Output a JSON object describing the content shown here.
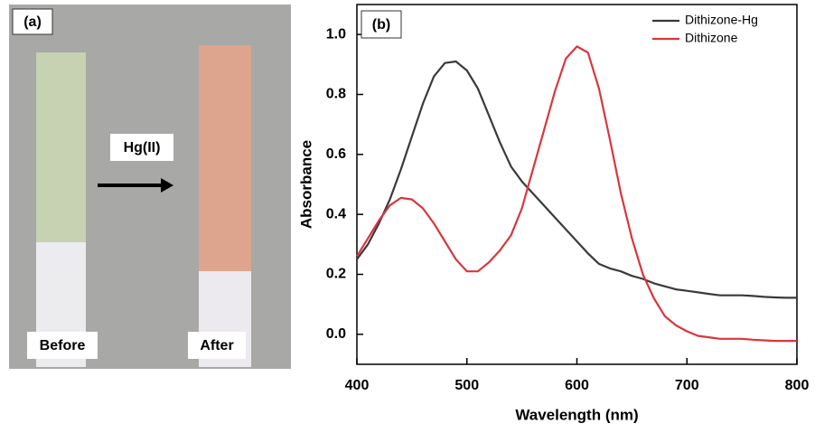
{
  "panel_a": {
    "label": "(a)",
    "arrow_label": "Hg(II)",
    "before": "Before",
    "after": "After"
  },
  "chart_data": {
    "type": "line",
    "title": "(b)",
    "x_label": "Wavelength (nm)",
    "y_label": "Absorbance",
    "x": [
      400,
      410,
      420,
      430,
      440,
      450,
      460,
      470,
      480,
      490,
      500,
      510,
      520,
      530,
      540,
      550,
      560,
      570,
      580,
      590,
      600,
      610,
      620,
      630,
      640,
      650,
      660,
      670,
      680,
      690,
      700,
      710,
      720,
      730,
      740,
      750,
      760,
      770,
      780,
      790,
      800
    ],
    "series": [
      {
        "name": "Dithizone-Hg",
        "color": "#3a3a3a",
        "values": [
          0.25,
          0.3,
          0.37,
          0.45,
          0.55,
          0.66,
          0.77,
          0.86,
          0.905,
          0.91,
          0.88,
          0.82,
          0.73,
          0.64,
          0.56,
          0.51,
          0.47,
          0.43,
          0.39,
          0.35,
          0.31,
          0.27,
          0.235,
          0.22,
          0.21,
          0.195,
          0.185,
          0.17,
          0.16,
          0.15,
          0.145,
          0.14,
          0.135,
          0.13,
          0.13,
          0.13,
          0.128,
          0.125,
          0.123,
          0.122,
          0.122
        ]
      },
      {
        "name": "Dithizone",
        "color": "#d9363e",
        "values": [
          0.26,
          0.32,
          0.38,
          0.43,
          0.455,
          0.45,
          0.42,
          0.37,
          0.31,
          0.25,
          0.21,
          0.21,
          0.24,
          0.28,
          0.33,
          0.42,
          0.55,
          0.68,
          0.81,
          0.92,
          0.96,
          0.94,
          0.82,
          0.65,
          0.47,
          0.32,
          0.2,
          0.12,
          0.06,
          0.03,
          0.01,
          -0.005,
          -0.01,
          -0.015,
          -0.015,
          -0.015,
          -0.018,
          -0.02,
          -0.022,
          -0.022,
          -0.022
        ]
      }
    ],
    "xlim": [
      400,
      800
    ],
    "xticks": [
      400,
      500,
      600,
      700,
      800
    ],
    "ylim": [
      -0.1,
      1.1
    ],
    "yticks": [
      {
        "value": 0,
        "label": "0.0"
      },
      0.2,
      0.4,
      0.6,
      0.8,
      {
        "value": 1,
        "label": "1.0"
      }
    ],
    "legend": "upper right"
  }
}
